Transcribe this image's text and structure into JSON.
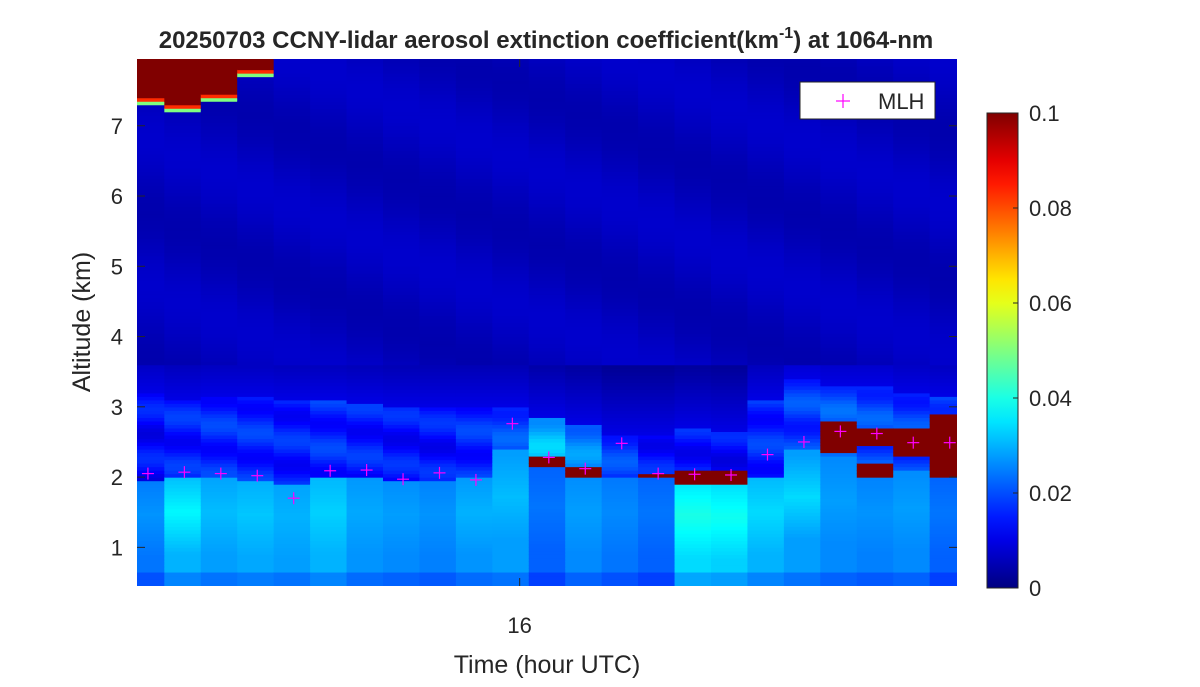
{
  "chart_data": {
    "type": "heatmap",
    "title_main": "20250703 CCNY-lidar aerosol extinction coefficient(km",
    "title_sup": "-1",
    "title_tail": ") at 1064-nm",
    "xlabel": "Time (hour UTC)",
    "ylabel": "Altitude (km)",
    "x_ticks": [
      {
        "value": 16,
        "label": "16"
      }
    ],
    "y_ticks": [
      {
        "value": 1,
        "label": "1"
      },
      {
        "value": 2,
        "label": "2"
      },
      {
        "value": 3,
        "label": "3"
      },
      {
        "value": 4,
        "label": "4"
      },
      {
        "value": 5,
        "label": "5"
      },
      {
        "value": 6,
        "label": "6"
      },
      {
        "value": 7,
        "label": "7"
      }
    ],
    "xlim": [
      14.95,
      17.2
    ],
    "ylim": [
      0.45,
      7.95
    ],
    "colormap": "jet",
    "colorbar": {
      "clim": [
        0,
        0.1
      ],
      "ticks": [
        {
          "value": 0,
          "label": "0"
        },
        {
          "value": 0.02,
          "label": "0.02"
        },
        {
          "value": 0.04,
          "label": "0.04"
        },
        {
          "value": 0.06,
          "label": "0.06"
        },
        {
          "value": 0.08,
          "label": "0.08"
        },
        {
          "value": 0.1,
          "label": "0.1"
        }
      ]
    },
    "profiles": [
      {
        "t": 14.975,
        "bl_top": 1.95,
        "bl_val": 0.024,
        "bl_mid": 0.027,
        "res_top": 3.2,
        "res_val": 0.013,
        "cloud_base": 7.4
      },
      {
        "t": 15.075,
        "bl_top": 2.0,
        "bl_val": 0.03,
        "bl_mid": 0.037,
        "res_top": 3.1,
        "res_val": 0.015,
        "cloud_base": 7.3
      },
      {
        "t": 15.175,
        "bl_top": 2.0,
        "bl_val": 0.028,
        "bl_mid": 0.031,
        "res_top": 3.15,
        "res_val": 0.016,
        "cloud_base": 7.45
      },
      {
        "t": 15.275,
        "bl_top": 1.95,
        "bl_val": 0.029,
        "bl_mid": 0.032,
        "res_top": 3.15,
        "res_val": 0.016,
        "cloud_base": 7.8
      },
      {
        "t": 15.375,
        "bl_top": 1.9,
        "bl_val": 0.028,
        "bl_mid": 0.03,
        "res_top": 3.1,
        "res_val": 0.015,
        "cloud_base": null
      },
      {
        "t": 15.475,
        "bl_top": 2.0,
        "bl_val": 0.03,
        "bl_mid": 0.033,
        "res_top": 3.1,
        "res_val": 0.016,
        "cloud_base": null
      },
      {
        "t": 15.575,
        "bl_top": 2.0,
        "bl_val": 0.027,
        "bl_mid": 0.029,
        "res_top": 3.05,
        "res_val": 0.015,
        "cloud_base": null
      },
      {
        "t": 15.675,
        "bl_top": 1.95,
        "bl_val": 0.026,
        "bl_mid": 0.028,
        "res_top": 3.0,
        "res_val": 0.014,
        "cloud_base": null
      },
      {
        "t": 15.775,
        "bl_top": 1.95,
        "bl_val": 0.025,
        "bl_mid": 0.027,
        "res_top": 3.0,
        "res_val": 0.014,
        "cloud_base": null
      },
      {
        "t": 15.875,
        "bl_top": 2.0,
        "bl_val": 0.027,
        "bl_mid": 0.03,
        "res_top": 3.0,
        "res_val": 0.016,
        "cloud_base": null
      },
      {
        "t": 15.975,
        "bl_top": 2.4,
        "bl_val": 0.028,
        "bl_mid": 0.031,
        "res_top": 3.0,
        "res_val": 0.019,
        "cloud_base": null
      },
      {
        "t": 16.075,
        "bl_top": 2.15,
        "bl_val": 0.022,
        "bl_mid": 0.024,
        "res_top": 2.85,
        "res_val": 0.03,
        "cloud_base": null,
        "layer": [
          2.15,
          2.3
        ]
      },
      {
        "t": 16.175,
        "bl_top": 2.0,
        "bl_val": 0.026,
        "bl_mid": 0.028,
        "res_top": 2.75,
        "res_val": 0.025,
        "cloud_base": null,
        "layer": [
          2.0,
          2.15
        ]
      },
      {
        "t": 16.275,
        "bl_top": 2.0,
        "bl_val": 0.024,
        "bl_mid": 0.026,
        "res_top": 2.6,
        "res_val": 0.018,
        "cloud_base": null
      },
      {
        "t": 16.375,
        "bl_top": 2.0,
        "bl_val": 0.022,
        "bl_mid": 0.024,
        "res_top": 2.6,
        "res_val": 0.014,
        "cloud_base": null,
        "layer": [
          1.98,
          2.05
        ]
      },
      {
        "t": 16.475,
        "bl_top": 1.92,
        "bl_val": 0.034,
        "bl_mid": 0.04,
        "res_top": 2.7,
        "res_val": 0.014,
        "cloud_base": null,
        "layer": [
          1.92,
          2.1
        ]
      },
      {
        "t": 16.575,
        "bl_top": 1.88,
        "bl_val": 0.033,
        "bl_mid": 0.039,
        "res_top": 2.65,
        "res_val": 0.013,
        "cloud_base": null,
        "layer": [
          1.88,
          2.12
        ]
      },
      {
        "t": 16.675,
        "bl_top": 2.0,
        "bl_val": 0.03,
        "bl_mid": 0.034,
        "res_top": 3.1,
        "res_val": 0.016,
        "cloud_base": null
      },
      {
        "t": 16.775,
        "bl_top": 2.4,
        "bl_val": 0.028,
        "bl_mid": 0.034,
        "res_top": 3.4,
        "res_val": 0.018,
        "cloud_base": null
      },
      {
        "t": 16.875,
        "bl_top": 2.3,
        "bl_val": 0.026,
        "bl_mid": 0.028,
        "res_top": 3.3,
        "res_val": 0.02,
        "cloud_base": null,
        "layer": [
          2.35,
          2.78
        ]
      },
      {
        "t": 16.975,
        "bl_top": 2.0,
        "bl_val": 0.025,
        "bl_mid": 0.027,
        "res_top": 3.3,
        "res_val": 0.019,
        "cloud_base": null,
        "layer": [
          2.0,
          2.2
        ],
        "layer2": [
          2.45,
          2.68
        ]
      },
      {
        "t": 17.075,
        "bl_top": 2.1,
        "bl_val": 0.026,
        "bl_mid": 0.028,
        "res_top": 3.2,
        "res_val": 0.018,
        "cloud_base": null,
        "layer": [
          2.3,
          2.72
        ]
      },
      {
        "t": 17.175,
        "bl_top": 2.0,
        "bl_val": 0.022,
        "bl_mid": 0.024,
        "res_top": 3.15,
        "res_val": 0.02,
        "cloud_base": null,
        "layer": [
          2.0,
          2.9
        ]
      }
    ],
    "series": [
      {
        "name": "MLH",
        "color": "#ff00ff",
        "marker": "plus",
        "x": [
          14.98,
          15.08,
          15.18,
          15.28,
          15.38,
          15.48,
          15.58,
          15.68,
          15.78,
          15.88,
          15.98,
          16.08,
          16.18,
          16.28,
          16.38,
          16.48,
          16.58,
          16.68,
          16.78,
          16.88,
          16.98,
          17.08,
          17.18
        ],
        "y": [
          2.05,
          2.07,
          2.05,
          2.02,
          1.7,
          2.09,
          2.1,
          1.97,
          2.06,
          1.96,
          2.76,
          2.28,
          2.12,
          2.48,
          2.05,
          2.04,
          2.03,
          2.32,
          2.5,
          2.65,
          2.62,
          2.49,
          2.49
        ]
      }
    ],
    "legend": {
      "position": "top-right",
      "entries": [
        "MLH"
      ]
    }
  }
}
